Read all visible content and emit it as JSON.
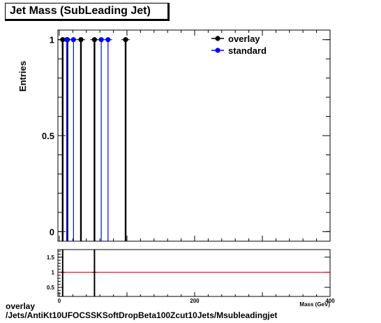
{
  "title": "Jet Mass (SubLeading Jet)",
  "footer": {
    "line1": "overlay",
    "line2": "/Jets/AntiKt10UFOCSSKSoftDropBeta100Zcut10Jets/Msubleadingjet"
  },
  "chart_data": [
    {
      "type": "scatter",
      "ylabel": "Entries",
      "xlim": [
        -2,
        400
      ],
      "ylim": [
        -0.05,
        1.05
      ],
      "y_ticks": [
        "0",
        "0.5",
        "1"
      ],
      "legend_position": "top-right",
      "series": [
        {
          "name": "overlay",
          "color": "#000000",
          "x": [
            5,
            12,
            32,
            52,
            98
          ],
          "y": [
            1,
            1,
            1,
            1,
            1
          ]
        },
        {
          "name": "standard",
          "color": "#0000ff",
          "x": [
            11,
            21,
            62,
            72
          ],
          "y": [
            1,
            1,
            1,
            1
          ]
        }
      ]
    },
    {
      "type": "line",
      "xlabel": "Mass (GeV)",
      "xlim": [
        -2,
        400
      ],
      "ylim": [
        0.2,
        1.75
      ],
      "x_ticks": [
        "0",
        "200",
        "400"
      ],
      "y_ticks": [
        "0.5",
        "1",
        "1.5"
      ],
      "reference_line": {
        "y": 1,
        "color": "#cc0000"
      },
      "ratio_points": {
        "x": [
          5,
          52
        ],
        "y": [
          1,
          1
        ]
      }
    }
  ]
}
